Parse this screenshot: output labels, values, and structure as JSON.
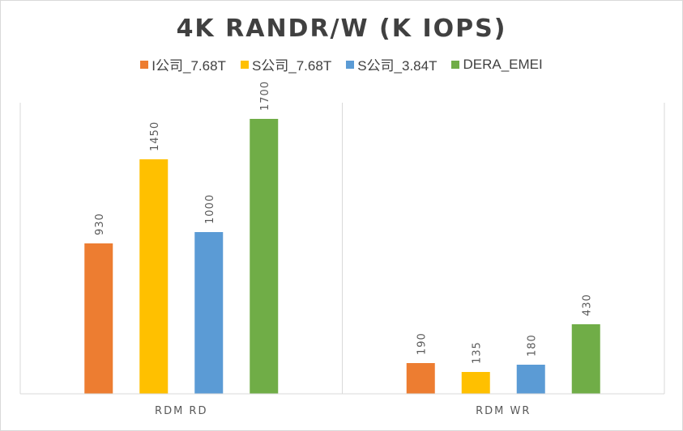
{
  "chart_data": {
    "type": "bar",
    "title": "4K RANDR/W (K IOPS)",
    "categories": [
      "RDM RD",
      "RDM WR"
    ],
    "series": [
      {
        "name": "I公司_7.68T",
        "color": "#ED7D31",
        "values": [
          930,
          190
        ]
      },
      {
        "name": "S公司_7.68T",
        "color": "#FFC000",
        "values": [
          1450,
          135
        ]
      },
      {
        "name": "S公司_3.84T",
        "color": "#5B9BD5",
        "values": [
          1000,
          180
        ]
      },
      {
        "name": "DERA_EMEI",
        "color": "#70AD47",
        "values": [
          1700,
          430
        ]
      }
    ],
    "xlabel": "",
    "ylabel": "",
    "ylim": [
      0,
      1900
    ],
    "grid": false,
    "legend_position": "top"
  }
}
